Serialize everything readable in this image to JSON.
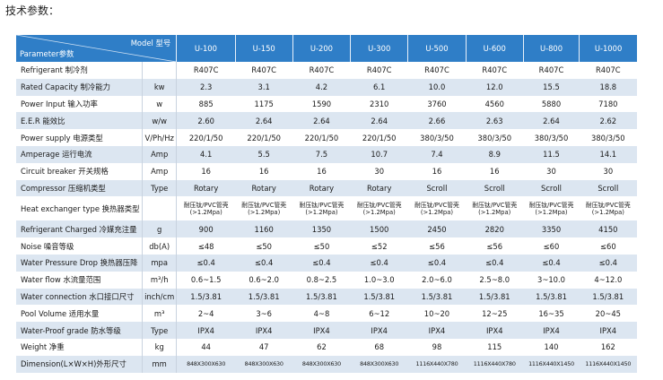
{
  "page_title": "技术参数：",
  "header": {
    "model_label": "Model 型号",
    "parameter_label": "Parameter参数",
    "models": [
      "U-100",
      "U-150",
      "U-200",
      "U-300",
      "U-500",
      "U-600",
      "U-800",
      "U-1000"
    ]
  },
  "rows": [
    {
      "name": "Refrigerant  制冷剂",
      "unit": "",
      "values": [
        "R407C",
        "R407C",
        "R407C",
        "R407C",
        "R407C",
        "R407C",
        "R407C",
        "R407C"
      ]
    },
    {
      "name": "Rated Capacity  制冷能力",
      "unit": "kw",
      "values": [
        "2.3",
        "3.1",
        "4.2",
        "6.1",
        "10.0",
        "12.0",
        "15.5",
        "18.8"
      ]
    },
    {
      "name": "Power Input   输入功率",
      "unit": "w",
      "values": [
        "885",
        "1175",
        "1590",
        "2310",
        "3760",
        "4560",
        "5880",
        "7180"
      ]
    },
    {
      "name": "E.E.R  能效比",
      "unit": "w/w",
      "values": [
        "2.60",
        "2.64",
        "2.64",
        "2.64",
        "2.66",
        "2.63",
        "2.64",
        "2.62"
      ]
    },
    {
      "name": "Power supply  电源类型",
      "unit": "V/Ph/Hz",
      "values": [
        "220/1/50",
        "220/1/50",
        "220/1/50",
        "220/1/50",
        "380/3/50",
        "380/3/50",
        "380/3/50",
        "380/3/50"
      ]
    },
    {
      "name": "Amperage  运行电流",
      "unit": "Amp",
      "values": [
        "4.1",
        "5.5",
        "7.5",
        "10.7",
        "7.4",
        "8.9",
        "11.5",
        "14.1"
      ]
    },
    {
      "name": "Circuit breaker  开关规格",
      "unit": "Amp",
      "values": [
        "16",
        "16",
        "16",
        "30",
        "16",
        "16",
        "30",
        "30"
      ]
    },
    {
      "name": "Compressor  压缩机类型",
      "unit": "Type",
      "values": [
        "Rotary",
        "Rotary",
        "Rotary",
        "Rotary",
        "Scroll",
        "Scroll",
        "Scroll",
        "Scroll"
      ]
    },
    {
      "name": "Heat exchanger type  换热器类型",
      "unit": "",
      "values": [
        "耐压钛/PVC管壳\n(>1.2Mpa)",
        "耐压钛/PVC管壳\n(>1.2Mpa)",
        "耐压钛/PVC管壳\n(>1.2Mpa)",
        "耐压钛/PVC管壳\n(>1.2Mpa)",
        "耐压钛/PVC管壳\n(>1.2Mpa)",
        "耐压钛/PVC管壳\n(>1.2Mpa)",
        "耐压钛/PVC管壳\n(>1.2Mpa)",
        "耐压钛/PVC管壳\n(>1.2Mpa)"
      ]
    },
    {
      "name": "Refrigerant Charged  冷媒充注量",
      "unit": "g",
      "values": [
        "900",
        "1160",
        "1350",
        "1500",
        "2450",
        "2820",
        "3350",
        "4150"
      ]
    },
    {
      "name": "Noise  噪音等级",
      "unit": "db(A)",
      "values": [
        "≤48",
        "≤50",
        "≤50",
        "≤52",
        "≤56",
        "≤56",
        "≤60",
        "≤60"
      ]
    },
    {
      "name": "Water Pressure Drop  换热器压降",
      "unit": "mpa",
      "values": [
        "≤0.4",
        "≤0.4",
        "≤0.4",
        "≤0.4",
        "≤0.4",
        "≤0.4",
        "≤0.4",
        "≤0.4"
      ]
    },
    {
      "name": "Water flow  水流量范围",
      "unit": "m³/h",
      "values": [
        "0.6~1.5",
        "0.6~2.0",
        "0.8~2.5",
        "1.0~3.0",
        "2.0~6.0",
        "2.5~8.0",
        "3~10.0",
        "4~12.0"
      ]
    },
    {
      "name": "Water connection 水口接口尺寸",
      "unit": "inch/cm",
      "values": [
        "1.5/3.81",
        "1.5/3.81",
        "1.5/3.81",
        "1.5/3.81",
        "1.5/3.81",
        "1.5/3.81",
        "1.5/3.81",
        "1.5/3.81"
      ]
    },
    {
      "name": "Pool Volume  适用水量",
      "unit": "m³",
      "values": [
        "2~4",
        "3~6",
        "4~8",
        "6~12",
        "10~20",
        "12~25",
        "16~35",
        "20~45"
      ]
    },
    {
      "name": "Water-Proof grade  防水等级",
      "unit": "Type",
      "values": [
        "IPX4",
        "IPX4",
        "IPX4",
        "IPX4",
        "IPX4",
        "IPX4",
        "IPX4",
        "IPX4"
      ]
    },
    {
      "name": "Weight  净重",
      "unit": "kg",
      "values": [
        "44",
        "47",
        "62",
        "68",
        "98",
        "115",
        "140",
        "162"
      ]
    },
    {
      "name": "Dimension(L×W×H)外形尺寸",
      "unit": "mm",
      "values": [
        "848X300X630",
        "848X300X630",
        "848X300X630",
        "848X300X630",
        "1116X440X780",
        "1116X440X780",
        "1116X440X1450",
        "1116X440X1450"
      ]
    }
  ]
}
